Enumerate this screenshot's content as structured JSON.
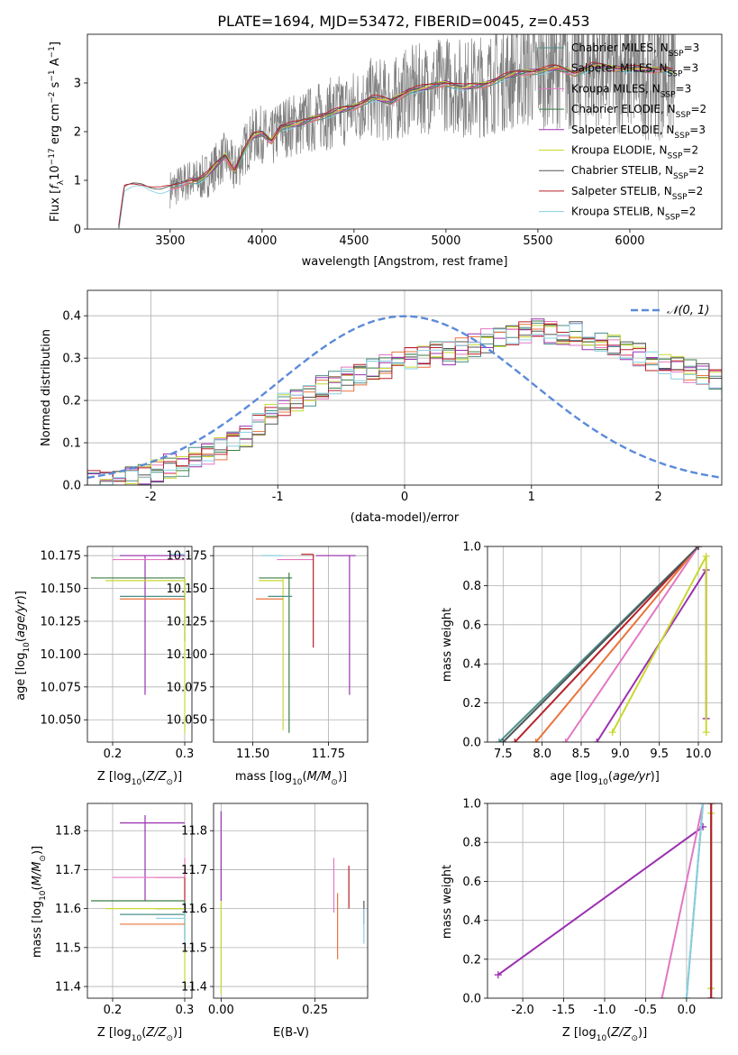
{
  "figure": {
    "title": "PLATE=1694, MJD=53472, FIBERID=0045, z=0.453"
  },
  "colors": {
    "Chabrier MILES": "#4a8f8a",
    "Salpeter MILES": "#e8743b",
    "Kroupa MILES": "#e377c2",
    "Chabrier ELODIE": "#3a7d44",
    "Salpeter ELODIE": "#9b30b0",
    "Kroupa ELODIE": "#c8d830",
    "Chabrier STELIB": "#555555",
    "Salpeter STELIB": "#b8202a",
    "Kroupa STELIB": "#88d0e0",
    "normal": "#5b8bd9",
    "data": "#808080"
  },
  "chart_data": [
    {
      "id": "spectrum",
      "type": "line",
      "xlabel": "wavelength [Angstrom, rest frame]",
      "ylabel": "Flux [f_λ 10^-17 erg cm^-2 s^-1 A^-1]",
      "xlim": [
        3050,
        6500
      ],
      "ylim": [
        0,
        4
      ],
      "xticks": [
        3500,
        4000,
        4500,
        5000,
        5500,
        6000
      ],
      "yticks": [
        0,
        1,
        2,
        3
      ],
      "legend_location": "upper right",
      "legend": [
        "Chabrier MILES, N_SSP=3",
        "Salpeter MILES, N_SSP=3",
        "Kroupa MILES, N_SSP=3",
        "Chabrier ELODIE, N_SSP=2",
        "Salpeter ELODIE, N_SSP=3",
        "Kroupa ELODIE, N_SSP=2",
        "Chabrier STELIB, N_SSP=2",
        "Salpeter STELIB, N_SSP=2",
        "Kroupa STELIB, N_SSP=2"
      ],
      "model_continuum": {
        "x": [
          3220,
          3250,
          3300,
          3350,
          3400,
          3450,
          3500,
          3550,
          3600,
          3650,
          3700,
          3750,
          3800,
          3850,
          3900,
          3950,
          4000,
          4050,
          4100,
          4200,
          4300,
          4400,
          4500,
          4600,
          4700,
          4800,
          4900,
          5000,
          5100,
          5200,
          5300,
          5400,
          5500,
          5600,
          5700,
          5800,
          5900,
          6000,
          6100,
          6200,
          6250
        ],
        "y": [
          0.0,
          0.82,
          0.88,
          0.9,
          0.85,
          0.8,
          0.82,
          0.9,
          1.0,
          1.0,
          1.1,
          1.3,
          1.5,
          1.2,
          1.6,
          1.9,
          1.95,
          1.8,
          2.1,
          2.15,
          2.3,
          2.4,
          2.5,
          2.7,
          2.6,
          2.85,
          2.9,
          3.0,
          2.9,
          2.95,
          3.1,
          3.2,
          3.25,
          3.3,
          3.2,
          3.35,
          3.3,
          3.3,
          3.25,
          3.3,
          3.2
        ]
      },
      "data_range": [
        3500,
        6250
      ]
    },
    {
      "id": "residuals",
      "type": "histogram",
      "xlabel": "(data-model)/error",
      "ylabel": "Normed distribution",
      "xlim": [
        -2.5,
        2.5
      ],
      "ylim": [
        0,
        0.46
      ],
      "xticks": [
        -2,
        -1,
        0,
        1,
        2
      ],
      "yticks": [
        0.0,
        0.1,
        0.2,
        0.3,
        0.4
      ],
      "bin_width": 0.1,
      "bin_start": -2.5,
      "reference": {
        "name": "N(0,1)",
        "style": "dashed"
      },
      "envelope": [
        0.005,
        0.005,
        0.01,
        0.015,
        0.025,
        0.035,
        0.045,
        0.05,
        0.06,
        0.07,
        0.085,
        0.1,
        0.12,
        0.14,
        0.17,
        0.19,
        0.2,
        0.21,
        0.23,
        0.24,
        0.25,
        0.26,
        0.27,
        0.28,
        0.29,
        0.3,
        0.3,
        0.31,
        0.31,
        0.32,
        0.33,
        0.34,
        0.35,
        0.36,
        0.36,
        0.37,
        0.36,
        0.36,
        0.36,
        0.35,
        0.34,
        0.33,
        0.32,
        0.31,
        0.3,
        0.29,
        0.28,
        0.27,
        0.26,
        0.25,
        0.24,
        0.23,
        0.21,
        0.2,
        0.18,
        0.17,
        0.15,
        0.14,
        0.12,
        0.1,
        0.09,
        0.08,
        0.06,
        0.05,
        0.04,
        0.035,
        0.03,
        0.025,
        0.02,
        0.015
      ]
    },
    {
      "id": "age_vs_Z",
      "type": "errorbar",
      "xlabel": "Z [log10(Z/Z⊙)]",
      "ylabel": "age [log10(age/yr)]",
      "xlim": [
        0.165,
        0.31
      ],
      "ylim": [
        10.033,
        10.182
      ],
      "xticks": [
        0.2,
        0.3
      ],
      "yticks": [
        10.05,
        10.075,
        10.1,
        10.125,
        10.15,
        10.175
      ],
      "points": [
        {
          "series": "Salpeter ELODIE",
          "x": 0.245,
          "y": 10.175,
          "xlo": 0.21,
          "xhi": 0.3,
          "ylo": 10.069,
          "yhi": 10.175
        },
        {
          "series": "Kroupa MILES",
          "x": 0.25,
          "y": 10.172,
          "xlo": 0.2,
          "xhi": 0.3,
          "ylo": 10.172,
          "yhi": 10.172
        },
        {
          "series": "Kroupa STELIB",
          "x": 0.29,
          "y": 10.176,
          "xlo": 0.28,
          "xhi": 0.3,
          "ylo": 10.176,
          "yhi": 10.176
        },
        {
          "series": "Chabrier ELODIE",
          "x": 0.3,
          "y": 10.158,
          "xlo": 0.17,
          "xhi": 0.3,
          "ylo": 10.11,
          "yhi": 10.158
        },
        {
          "series": "Kroupa ELODIE",
          "x": 0.3,
          "y": 10.156,
          "xlo": 0.19,
          "xhi": 0.3,
          "ylo": 10.04,
          "yhi": 10.158
        },
        {
          "series": "Chabrier MILES",
          "x": 0.26,
          "y": 10.144,
          "xlo": 0.21,
          "xhi": 0.3,
          "ylo": 10.144,
          "yhi": 10.144
        },
        {
          "series": "Salpeter MILES",
          "x": 0.26,
          "y": 10.142,
          "xlo": 0.21,
          "xhi": 0.3,
          "ylo": 10.142,
          "yhi": 10.142
        }
      ]
    },
    {
      "id": "age_vs_mass",
      "type": "errorbar",
      "xlabel": "mass [log10(M/M⊙)]",
      "ylabel": "",
      "xlim": [
        11.37,
        11.88
      ],
      "ylim": [
        10.033,
        10.182
      ],
      "xticks": [
        11.5,
        11.75
      ],
      "yticks": [
        10.05,
        10.075,
        10.1,
        10.125,
        10.15,
        10.175
      ],
      "points": [
        {
          "series": "Salpeter ELODIE",
          "x": 11.82,
          "y": 10.175,
          "xlo": 11.71,
          "xhi": 11.84,
          "ylo": 10.069,
          "yhi": 10.175
        },
        {
          "series": "Kroupa MILES",
          "x": 11.68,
          "y": 10.172,
          "xlo": 11.58,
          "xhi": 11.7,
          "ylo": 10.172,
          "yhi": 10.172
        },
        {
          "series": "Kroupa STELIB",
          "x": 11.58,
          "y": 10.175,
          "xlo": 11.53,
          "xhi": 11.6,
          "ylo": 10.175,
          "yhi": 10.175
        },
        {
          "series": "Chabrier ELODIE",
          "x": 11.62,
          "y": 10.158,
          "xlo": 11.52,
          "xhi": 11.63,
          "ylo": 10.04,
          "yhi": 10.162
        },
        {
          "series": "Kroupa ELODIE",
          "x": 11.6,
          "y": 10.156,
          "xlo": 11.52,
          "xhi": 11.6,
          "ylo": 10.042,
          "yhi": 10.158
        },
        {
          "series": "Salpeter STELIB",
          "x": 11.7,
          "y": 10.176,
          "xlo": 11.66,
          "xhi": 11.7,
          "ylo": 10.105,
          "yhi": 10.176
        },
        {
          "series": "Chabrier MILES",
          "x": 11.6,
          "y": 10.144,
          "xlo": 11.55,
          "xhi": 11.63,
          "ylo": 10.144,
          "yhi": 10.144
        },
        {
          "series": "Salpeter MILES",
          "x": 11.56,
          "y": 10.142,
          "xlo": 11.51,
          "xhi": 11.6,
          "ylo": 10.142,
          "yhi": 10.142
        }
      ]
    },
    {
      "id": "weight_vs_age",
      "type": "line",
      "xlabel": "age [log10(age/yr)]",
      "ylabel": "mass weight",
      "xlim": [
        7.3,
        10.3
      ],
      "ylim": [
        0,
        1
      ],
      "xticks": [
        7.5,
        8.0,
        8.5,
        9.0,
        9.5,
        10.0
      ],
      "yticks": [
        0.0,
        0.2,
        0.4,
        0.6,
        0.8,
        1.0
      ],
      "series": [
        {
          "name": "Kroupa STELIB",
          "x": [
            7.5,
            10.0
          ],
          "y": [
            0.0,
            1.0
          ]
        },
        {
          "name": "Chabrier MILES",
          "x": [
            7.45,
            10.0
          ],
          "y": [
            0.0,
            1.0
          ]
        },
        {
          "name": "Salpeter STELIB",
          "x": [
            7.65,
            10.0
          ],
          "y": [
            0.0,
            1.0
          ]
        },
        {
          "name": "Salpeter MILES",
          "x": [
            7.92,
            10.0
          ],
          "y": [
            0.0,
            1.0
          ]
        },
        {
          "name": "Kroupa MILES",
          "x": [
            8.3,
            10.0
          ],
          "y": [
            0.0,
            1.0
          ]
        },
        {
          "name": "Salpeter ELODIE",
          "x": [
            8.7,
            10.1,
            10.1
          ],
          "y": [
            0.0,
            0.88,
            0.12
          ]
        },
        {
          "name": "Kroupa ELODIE",
          "x": [
            8.9,
            10.1,
            10.1
          ],
          "y": [
            0.05,
            0.95,
            0.05
          ]
        },
        {
          "name": "Chabrier STELIB",
          "x": [
            7.5,
            10.0
          ],
          "y": [
            0.0,
            1.0
          ]
        }
      ]
    },
    {
      "id": "mass_vs_Z",
      "type": "errorbar",
      "xlabel": "Z [log10(Z/Z⊙)]",
      "ylabel": "mass [log10(M/M⊙)]",
      "xlim": [
        0.165,
        0.31
      ],
      "ylim": [
        11.37,
        11.87
      ],
      "xticks": [
        0.2,
        0.3
      ],
      "yticks": [
        11.4,
        11.5,
        11.6,
        11.7,
        11.8
      ],
      "points": [
        {
          "series": "Salpeter ELODIE",
          "x": 0.245,
          "y": 11.82,
          "xlo": 0.21,
          "xhi": 0.3,
          "ylo": 11.62,
          "yhi": 11.84
        },
        {
          "series": "Salpeter STELIB",
          "x": 0.3,
          "y": 11.68,
          "xlo": 0.26,
          "xhi": 0.3,
          "ylo": 11.6,
          "yhi": 11.7
        },
        {
          "series": "Kroupa MILES",
          "x": 0.3,
          "y": 11.68,
          "xlo": 0.2,
          "xhi": 0.3,
          "ylo": 11.68,
          "yhi": 11.73
        },
        {
          "series": "Chabrier ELODIE",
          "x": 0.3,
          "y": 11.62,
          "xlo": 0.17,
          "xhi": 0.3,
          "ylo": 11.52,
          "yhi": 11.62
        },
        {
          "series": "Chabrier STELIB",
          "x": 0.3,
          "y": 11.6,
          "xlo": 0.26,
          "xhi": 0.3,
          "ylo": 11.6,
          "yhi": 11.6
        },
        {
          "series": "Kroupa ELODIE",
          "x": 0.3,
          "y": 11.6,
          "xlo": 0.19,
          "xhi": 0.3,
          "ylo": 11.4,
          "yhi": 11.6
        },
        {
          "series": "Chabrier MILES",
          "x": 0.3,
          "y": 11.585,
          "xlo": 0.21,
          "xhi": 0.3,
          "ylo": 11.585,
          "yhi": 11.585
        },
        {
          "series": "Kroupa STELIB",
          "x": 0.3,
          "y": 11.575,
          "xlo": 0.26,
          "xhi": 0.3,
          "ylo": 11.5,
          "yhi": 11.6
        },
        {
          "series": "Salpeter MILES",
          "x": 0.3,
          "y": 11.56,
          "xlo": 0.21,
          "xhi": 0.3,
          "ylo": 11.56,
          "yhi": 11.56
        }
      ]
    },
    {
      "id": "mass_vs_ebv",
      "type": "errorbar",
      "xlabel": "E(B-V)",
      "ylabel": "",
      "xlim": [
        -0.02,
        0.39
      ],
      "ylim": [
        11.37,
        11.87
      ],
      "xticks": [
        0.0,
        0.25
      ],
      "yticks": [
        11.4,
        11.5,
        11.6,
        11.7,
        11.8
      ],
      "points": [
        {
          "series": "Salpeter ELODIE",
          "x": 0.0,
          "y": 11.82,
          "xlo": 0.0,
          "xhi": 0.0,
          "ylo": 11.62,
          "yhi": 11.85
        },
        {
          "series": "Kroupa ELODIE",
          "x": 0.0,
          "y": 11.6,
          "xlo": 0.0,
          "xhi": 0.0,
          "ylo": 11.38,
          "yhi": 11.62
        },
        {
          "series": "Kroupa MILES",
          "x": 0.3,
          "y": 11.68,
          "xlo": 0.3,
          "xhi": 0.3,
          "ylo": 11.59,
          "yhi": 11.73
        },
        {
          "series": "Salpeter MILES",
          "x": 0.31,
          "y": 11.56,
          "xlo": 0.31,
          "xhi": 0.31,
          "ylo": 11.47,
          "yhi": 11.64
        },
        {
          "series": "Salpeter STELIB",
          "x": 0.34,
          "y": 11.68,
          "xlo": 0.34,
          "xhi": 0.34,
          "ylo": 11.6,
          "yhi": 11.71
        },
        {
          "series": "Chabrier STELIB",
          "x": 0.38,
          "y": 11.6,
          "xlo": 0.38,
          "xhi": 0.38,
          "ylo": 11.56,
          "yhi": 11.62
        },
        {
          "series": "Kroupa STELIB",
          "x": 0.38,
          "y": 11.57,
          "xlo": 0.38,
          "xhi": 0.38,
          "ylo": 11.51,
          "yhi": 11.6
        }
      ]
    },
    {
      "id": "weight_vs_Z",
      "type": "line",
      "xlabel": "Z [log10(Z/Z⊙)]",
      "ylabel": "mass weight",
      "xlim": [
        -2.43,
        0.43
      ],
      "ylim": [
        0,
        1
      ],
      "xticks": [
        -2.0,
        -1.5,
        -1.0,
        -0.5,
        0.0
      ],
      "yticks": [
        0.0,
        0.2,
        0.4,
        0.6,
        0.8,
        1.0
      ],
      "series": [
        {
          "name": "Salpeter ELODIE",
          "x": [
            -2.3,
            0.2
          ],
          "y": [
            0.12,
            0.88
          ]
        },
        {
          "name": "Kroupa MILES",
          "x": [
            -0.3,
            0.2
          ],
          "y": [
            0.0,
            1.0
          ]
        },
        {
          "name": "Chabrier MILES",
          "x": [
            0.0,
            0.2
          ],
          "y": [
            0.0,
            1.0
          ]
        },
        {
          "name": "Kroupa STELIB",
          "x": [
            0.0,
            0.2
          ],
          "y": [
            0.0,
            1.0
          ]
        },
        {
          "name": "Kroupa ELODIE",
          "x": [
            0.3,
            0.3
          ],
          "y": [
            0.05,
            0.95
          ]
        },
        {
          "name": "Chabrier ELODIE",
          "x": [
            0.3,
            0.3
          ],
          "y": [
            0.0,
            1.0
          ]
        },
        {
          "name": "Salpeter STELIB",
          "x": [
            0.3,
            0.3
          ],
          "y": [
            0.0,
            1.0
          ]
        }
      ]
    }
  ]
}
